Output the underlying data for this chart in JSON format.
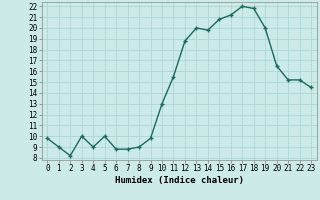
{
  "x": [
    0,
    1,
    2,
    3,
    4,
    5,
    6,
    7,
    8,
    9,
    10,
    11,
    12,
    13,
    14,
    15,
    16,
    17,
    18,
    19,
    20,
    21,
    22,
    23
  ],
  "y": [
    9.8,
    9.0,
    8.2,
    10.0,
    9.0,
    10.0,
    8.8,
    8.8,
    9.0,
    9.8,
    13.0,
    15.5,
    18.8,
    20.0,
    19.8,
    20.8,
    21.2,
    22.0,
    21.8,
    20.0,
    16.5,
    15.2,
    15.2,
    14.5
  ],
  "line_color": "#1a6b5a",
  "marker_color": "#1a6b5a",
  "bg_color": "#cceae8",
  "grid_color": "#b0d8d5",
  "xlabel": "Humidex (Indice chaleur)",
  "xlim": [
    -0.5,
    23.5
  ],
  "ylim": [
    7.8,
    22.4
  ],
  "yticks": [
    8,
    9,
    10,
    11,
    12,
    13,
    14,
    15,
    16,
    17,
    18,
    19,
    20,
    21,
    22
  ],
  "xtick_labels": [
    "0",
    "1",
    "2",
    "3",
    "4",
    "5",
    "6",
    "7",
    "8",
    "9",
    "10",
    "11",
    "12",
    "13",
    "14",
    "15",
    "16",
    "17",
    "18",
    "19",
    "20",
    "21",
    "22",
    "23"
  ],
  "label_fontsize": 6.5,
  "tick_fontsize": 5.5,
  "marker_size": 2.5,
  "line_width": 1.0
}
